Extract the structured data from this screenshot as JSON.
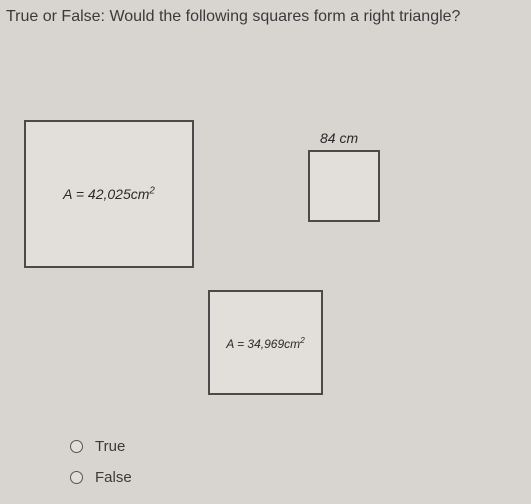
{
  "question": "True or False: Would the following squares form a right triangle?",
  "squares": {
    "sq1": {
      "label_html": "A = 42,025cm²",
      "border_color": "#4a4a4a",
      "bg_color": "#e2dfda"
    },
    "sq2": {
      "top_label": "84 cm",
      "border_color": "#4a4a4a",
      "bg_color": "#e2dfda"
    },
    "sq3": {
      "label_html": "A = 34,969cm²",
      "border_color": "#4a4a4a",
      "bg_color": "#e2dfda"
    }
  },
  "options": {
    "opt_true": "True",
    "opt_false": "False"
  },
  "colors": {
    "page_bg": "#d8d5d0",
    "text": "#3a3a3a",
    "border": "#4a4a4a"
  }
}
